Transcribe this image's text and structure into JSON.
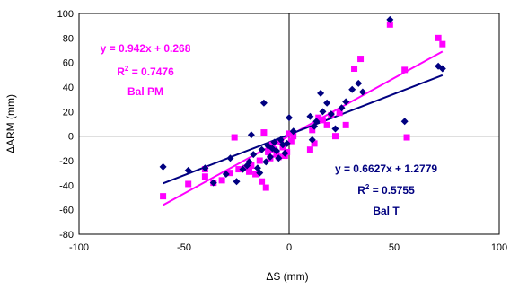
{
  "chart_data": {
    "type": "scatter",
    "xlabel": "ΔS (mm)",
    "ylabel": "ΔARM (mm)",
    "xlim": [
      -100,
      100
    ],
    "ylim": [
      -80,
      100
    ],
    "xticks": [
      -100,
      -50,
      0,
      50,
      100
    ],
    "yticks": [
      -80,
      -60,
      -40,
      -20,
      0,
      20,
      40,
      60,
      80,
      100
    ],
    "grid": false,
    "series": [
      {
        "name": "Bal PM",
        "marker": "square",
        "color": "#ff00ff",
        "points": [
          [
            -60,
            -49
          ],
          [
            -48,
            -39
          ],
          [
            -40,
            -33
          ],
          [
            -40,
            -27
          ],
          [
            -36,
            -38
          ],
          [
            -32,
            -36
          ],
          [
            -28,
            -30
          ],
          [
            -26,
            -1
          ],
          [
            -24,
            -27
          ],
          [
            -21,
            -26
          ],
          [
            -19,
            -29
          ],
          [
            -18,
            -24
          ],
          [
            -16,
            -31
          ],
          [
            -14,
            -20
          ],
          [
            -13,
            -37
          ],
          [
            -12,
            3
          ],
          [
            -11,
            -42
          ],
          [
            -10,
            -13
          ],
          [
            -9,
            -18
          ],
          [
            -8,
            -7
          ],
          [
            -7,
            -11
          ],
          [
            -6,
            -15
          ],
          [
            -5,
            -17
          ],
          [
            -4,
            -5
          ],
          [
            -3,
            -9
          ],
          [
            -2,
            -16
          ],
          [
            -1,
            -13
          ],
          [
            0,
            2
          ],
          [
            1,
            -4
          ],
          [
            2,
            0
          ],
          [
            10,
            -11
          ],
          [
            11,
            5
          ],
          [
            12,
            -6
          ],
          [
            14,
            15
          ],
          [
            16,
            13
          ],
          [
            18,
            9
          ],
          [
            20,
            17
          ],
          [
            22,
            0
          ],
          [
            24,
            19
          ],
          [
            27,
            9
          ],
          [
            31,
            55
          ],
          [
            34,
            63
          ],
          [
            48,
            91
          ],
          [
            55,
            54
          ],
          [
            56,
            -1
          ],
          [
            71,
            80
          ],
          [
            73,
            75
          ]
        ],
        "fit": {
          "slope": 0.942,
          "intercept": 0.268,
          "r2": 0.7476,
          "x_range": [
            -60,
            73
          ]
        },
        "annotation": {
          "equation": "y = 0.942x + 0.268",
          "r2_prefix": "R",
          "r2_sup": "2",
          "r2_value": " = 0.7476",
          "label": "Bal PM"
        }
      },
      {
        "name": "Bal T",
        "marker": "diamond",
        "color": "#000080",
        "points": [
          [
            -60,
            -25
          ],
          [
            -48,
            -28
          ],
          [
            -40,
            -26
          ],
          [
            -36,
            -38
          ],
          [
            -30,
            -31
          ],
          [
            -28,
            -18
          ],
          [
            -25,
            -37
          ],
          [
            -22,
            -27
          ],
          [
            -20,
            -24
          ],
          [
            -19,
            -21
          ],
          [
            -18,
            1
          ],
          [
            -17,
            -15
          ],
          [
            -15,
            -26
          ],
          [
            -14,
            -30
          ],
          [
            -13,
            -11
          ],
          [
            -12,
            27
          ],
          [
            -11,
            -21
          ],
          [
            -10,
            -8
          ],
          [
            -9,
            -17
          ],
          [
            -8,
            -10
          ],
          [
            -7,
            -5
          ],
          [
            -6,
            -12
          ],
          [
            -5,
            -18
          ],
          [
            -4,
            -3
          ],
          [
            -3,
            -7
          ],
          [
            -2,
            -14
          ],
          [
            -1,
            -6
          ],
          [
            0,
            15
          ],
          [
            2,
            4
          ],
          [
            10,
            16
          ],
          [
            11,
            -3
          ],
          [
            12,
            8
          ],
          [
            13,
            12
          ],
          [
            15,
            35
          ],
          [
            16,
            20
          ],
          [
            18,
            27
          ],
          [
            20,
            18
          ],
          [
            22,
            6
          ],
          [
            25,
            23
          ],
          [
            27,
            28
          ],
          [
            30,
            38
          ],
          [
            33,
            43
          ],
          [
            35,
            36
          ],
          [
            48,
            95
          ],
          [
            55,
            12
          ],
          [
            71,
            57
          ],
          [
            73,
            55
          ]
        ],
        "fit": {
          "slope": 0.6627,
          "intercept": 1.2779,
          "r2": 0.5755,
          "x_range": [
            -60,
            73
          ]
        },
        "annotation": {
          "equation": "y = 0.6627x + 1.2779",
          "r2_prefix": "R",
          "r2_sup": "2",
          "r2_value": " = 0.5755",
          "label": "Bal T"
        }
      }
    ]
  }
}
